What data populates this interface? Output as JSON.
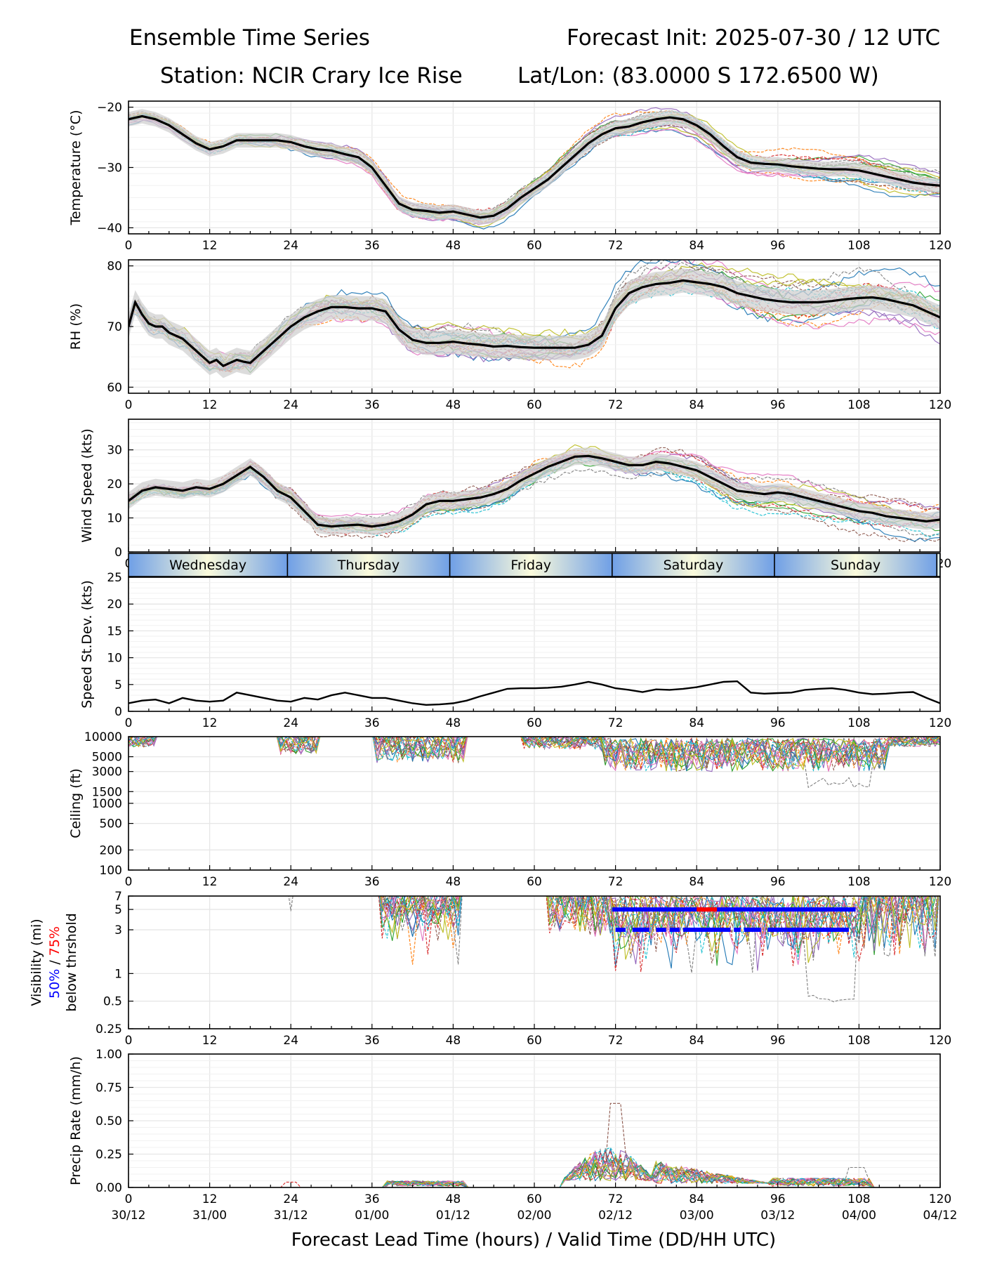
{
  "header": {
    "title_left": "Ensemble Time Series",
    "title_right": "Forecast Init: 2025-07-30 / 12 UTC",
    "station": "Station: NCIR Crary Ice Rise",
    "latlon": "Lat/Lon: (83.0000 S 172.6500 W)"
  },
  "x_axis": {
    "xlabel": "Forecast Lead Time (hours) / Valid Time (DD/HH UTC)",
    "xlim": [
      0,
      120
    ],
    "ticks": [
      0,
      12,
      24,
      36,
      48,
      60,
      72,
      84,
      96,
      108,
      120
    ],
    "tick_labels": [
      "0",
      "12",
      "24",
      "36",
      "48",
      "60",
      "72",
      "84",
      "96",
      "108",
      "120"
    ],
    "valid_time_labels": [
      "30/12",
      "31/00",
      "31/12",
      "01/00",
      "01/12",
      "02/00",
      "02/12",
      "03/00",
      "03/12",
      "04/00",
      "04/12"
    ]
  },
  "day_band": {
    "days": [
      "Wednesday",
      "Thursday",
      "Friday",
      "Saturday",
      "Sunday"
    ],
    "day_boundaries_hours": [
      0,
      23.5,
      47.5,
      71.5,
      95.5,
      119.5,
      120
    ]
  },
  "colors": {
    "mean": "#000000",
    "spread": "#d0d0d0",
    "grid": "#e6e6e6",
    "vis_50": "#0000ff",
    "vis_75": "#ff0000",
    "members": [
      "#1f77b4",
      "#ff7f0e",
      "#2ca02c",
      "#d62728",
      "#9467bd",
      "#8c564b",
      "#e377c2",
      "#7f7f7f",
      "#bcbd22",
      "#17becf"
    ]
  },
  "chart_data": [
    {
      "id": "temperature",
      "type": "line",
      "ylabel": "Temperature (°C)",
      "ylim": [
        -41,
        -19
      ],
      "yticks": [
        -40,
        -30,
        -20
      ],
      "ytick_labels": [
        "−40",
        "−30",
        "−20"
      ],
      "grid": true,
      "ensemble_members": 20,
      "mean_series": {
        "x": [
          0,
          2,
          4,
          6,
          8,
          10,
          12,
          14,
          16,
          18,
          20,
          22,
          24,
          26,
          28,
          30,
          32,
          34,
          36,
          38,
          40,
          42,
          44,
          46,
          48,
          50,
          52,
          54,
          56,
          58,
          60,
          62,
          64,
          66,
          68,
          70,
          72,
          74,
          76,
          78,
          80,
          82,
          84,
          86,
          88,
          90,
          92,
          94,
          96,
          98,
          100,
          102,
          104,
          106,
          108,
          110,
          112,
          114,
          116,
          118,
          120
        ],
        "y": [
          -22,
          -21.5,
          -22,
          -23,
          -24.5,
          -26,
          -27,
          -26.5,
          -25.5,
          -25.5,
          -25.5,
          -25.5,
          -25.8,
          -26.5,
          -27,
          -27.2,
          -27.8,
          -28.3,
          -30,
          -33,
          -36,
          -37,
          -37.2,
          -37.5,
          -37.3,
          -37.8,
          -38.3,
          -38,
          -36.8,
          -35,
          -33.5,
          -32,
          -30,
          -28,
          -26,
          -24.5,
          -23.5,
          -23.2,
          -22.5,
          -22,
          -21.7,
          -22,
          -23,
          -24.5,
          -26.5,
          -28.3,
          -29.2,
          -29.4,
          -29.5,
          -29.8,
          -30,
          -30.2,
          -30.3,
          -30.3,
          -30.5,
          -31,
          -31.5,
          -32,
          -32.5,
          -32.8,
          -33
        ]
      },
      "spread": {
        "lo_offset": 1.2,
        "hi_offset": 1.2
      }
    },
    {
      "id": "rh",
      "type": "line",
      "ylabel": "RH (%)",
      "ylim": [
        59,
        81
      ],
      "yticks": [
        60,
        70,
        80
      ],
      "ytick_labels": [
        "60",
        "70",
        "80"
      ],
      "grid": true,
      "ensemble_members": 20,
      "mean_series": {
        "x": [
          0,
          1,
          2,
          3,
          4,
          5,
          6,
          7,
          8,
          9,
          10,
          11,
          12,
          13,
          14,
          15,
          16,
          17,
          18,
          20,
          22,
          24,
          26,
          28,
          30,
          32,
          34,
          36,
          38,
          40,
          42,
          44,
          46,
          48,
          50,
          52,
          54,
          56,
          58,
          60,
          62,
          64,
          66,
          68,
          70,
          72,
          74,
          76,
          78,
          80,
          82,
          84,
          86,
          88,
          90,
          92,
          94,
          96,
          98,
          100,
          102,
          104,
          106,
          108,
          110,
          112,
          114,
          116,
          118,
          120
        ],
        "y": [
          70,
          74,
          72,
          70.5,
          70,
          70,
          69,
          68.5,
          68,
          67,
          66,
          65,
          64,
          64.5,
          63.5,
          64,
          64.5,
          64.2,
          64,
          66,
          68,
          70,
          71.5,
          72.5,
          73.2,
          73.2,
          73,
          73,
          72.5,
          69.5,
          67.8,
          67.3,
          67.3,
          67.5,
          67.2,
          67,
          66.7,
          66.8,
          66.6,
          66.5,
          66.5,
          66.5,
          66.5,
          67,
          68.5,
          73,
          75.5,
          76.5,
          77,
          77.2,
          77.6,
          77.3,
          77,
          76.5,
          75.5,
          75,
          74.5,
          74.2,
          74,
          74,
          74,
          74.2,
          74.5,
          74.7,
          74.8,
          74.5,
          74,
          73.5,
          72.5,
          71.5
        ]
      },
      "spread": {
        "lo_offset": 2.0,
        "hi_offset": 2.0
      }
    },
    {
      "id": "wind_speed",
      "type": "line",
      "ylabel": "Wind Speed (kts)",
      "ylim": [
        0,
        39
      ],
      "yticks": [
        0,
        10,
        20,
        30
      ],
      "ytick_labels": [
        "0",
        "10",
        "20",
        "30"
      ],
      "grid": true,
      "ensemble_members": 20,
      "mean_series": {
        "x": [
          0,
          2,
          4,
          6,
          8,
          10,
          12,
          14,
          16,
          18,
          20,
          22,
          24,
          26,
          28,
          30,
          32,
          34,
          36,
          38,
          40,
          42,
          44,
          46,
          48,
          50,
          52,
          54,
          56,
          58,
          60,
          62,
          64,
          66,
          68,
          70,
          72,
          74,
          76,
          78,
          80,
          82,
          84,
          86,
          88,
          90,
          92,
          94,
          96,
          98,
          100,
          102,
          104,
          106,
          108,
          110,
          112,
          114,
          116,
          118,
          120
        ],
        "y": [
          15,
          18,
          19,
          18.5,
          18,
          19,
          18.5,
          20,
          22.5,
          25,
          22,
          18,
          16,
          12,
          8,
          7.5,
          7.8,
          8,
          7.5,
          8,
          9,
          11,
          14,
          15,
          15,
          15.5,
          16,
          17,
          18.5,
          21,
          23,
          25,
          26.5,
          28,
          28.2,
          27.5,
          26.5,
          25.5,
          25.5,
          26.5,
          26,
          25,
          24,
          22,
          20,
          18,
          17.5,
          17,
          17.5,
          17,
          16,
          15,
          14,
          13,
          12,
          11.5,
          10.5,
          10,
          9.5,
          9,
          9.5
        ]
      },
      "spread": {
        "lo_offset": 2.5,
        "hi_offset": 2.5
      }
    },
    {
      "id": "speed_stdev",
      "type": "line",
      "ylabel": "Speed St.Dev. (kts)",
      "ylim": [
        0,
        25
      ],
      "yticks": [
        0,
        5,
        10,
        15,
        20,
        25
      ],
      "ytick_labels": [
        "0",
        "5",
        "10",
        "15",
        "20",
        "25"
      ],
      "grid": true,
      "series": [
        {
          "x": [
            0,
            2,
            4,
            6,
            8,
            10,
            12,
            14,
            16,
            18,
            20,
            22,
            24,
            26,
            28,
            30,
            32,
            34,
            36,
            38,
            40,
            42,
            44,
            46,
            48,
            50,
            52,
            54,
            56,
            58,
            60,
            62,
            64,
            66,
            68,
            70,
            72,
            74,
            76,
            78,
            80,
            82,
            84,
            86,
            88,
            90,
            92,
            94,
            96,
            98,
            100,
            102,
            104,
            106,
            108,
            110,
            112,
            114,
            116,
            118,
            120
          ],
          "y": [
            1.5,
            2,
            2.2,
            1.5,
            2.5,
            2,
            1.8,
            2,
            3.5,
            3,
            2.5,
            2,
            1.8,
            2.5,
            2.2,
            3,
            3.5,
            3,
            2.5,
            2.5,
            2,
            1.5,
            1.2,
            1.3,
            1.5,
            2,
            2.8,
            3.5,
            4.2,
            4.3,
            4.3,
            4.4,
            4.6,
            5,
            5.5,
            5,
            4.3,
            4,
            3.6,
            4.1,
            4,
            4.2,
            4.5,
            5,
            5.5,
            5.6,
            3.5,
            3.3,
            3.4,
            3.5,
            4,
            4.2,
            4.3,
            4,
            3.5,
            3.2,
            3.3,
            3.5,
            3.6,
            2.5,
            1.5
          ]
        }
      ]
    },
    {
      "id": "ceiling",
      "type": "line",
      "scale": "log",
      "ylabel": "Ceiling (ft)",
      "ylim": [
        100,
        10000
      ],
      "yticks": [
        100,
        200,
        500,
        1000,
        1500,
        3000,
        5000,
        10000
      ],
      "ytick_labels": [
        "100",
        "200",
        "500",
        "1000",
        "1500",
        "3000",
        "5000",
        "10000"
      ],
      "grid": true,
      "ensemble_members": 20
    },
    {
      "id": "visibility",
      "type": "line",
      "scale": "log",
      "ylabel": "Visibility (mi)",
      "ylabel_lines": [
        "below thrshold"
      ],
      "threshold_label_50": "50%",
      "threshold_sep": " / ",
      "threshold_label_75": "75%",
      "ylim": [
        0.25,
        7
      ],
      "yticks": [
        0.25,
        0.5,
        1,
        3,
        5,
        7
      ],
      "ytick_labels": [
        "0.25",
        "0.5",
        "1",
        "3",
        "5",
        "7"
      ],
      "grid": true,
      "ensemble_members": 20,
      "threshold_markers": [
        {
          "level": 5,
          "x_start": 71.5,
          "x_end": 107.5,
          "pct50_color": "#0000ff",
          "pct75_segments": [
            [
              84,
              87
            ]
          ]
        },
        {
          "level": 3,
          "x_start": 72,
          "x_end": 106.5,
          "pct50_color": "#0000ff",
          "gaps": [
            [
              73.5,
              74.5
            ],
            [
              77,
              78
            ],
            [
              79.5,
              80
            ],
            [
              81.5,
              82
            ],
            [
              89,
              89.5
            ],
            [
              90.5,
              91
            ],
            [
              93.5,
              94.5
            ]
          ]
        }
      ]
    },
    {
      "id": "precip_rate",
      "type": "line",
      "ylabel": "Precip Rate (mm/h)",
      "ylim": [
        0,
        1
      ],
      "yticks": [
        0,
        0.25,
        0.5,
        0.75,
        1.0
      ],
      "ytick_labels": [
        "0.00",
        "0.25",
        "0.50",
        "0.75",
        "1.00"
      ],
      "grid": true,
      "ensemble_members": 20,
      "peak": {
        "x": 72,
        "y": 0.63
      }
    }
  ]
}
